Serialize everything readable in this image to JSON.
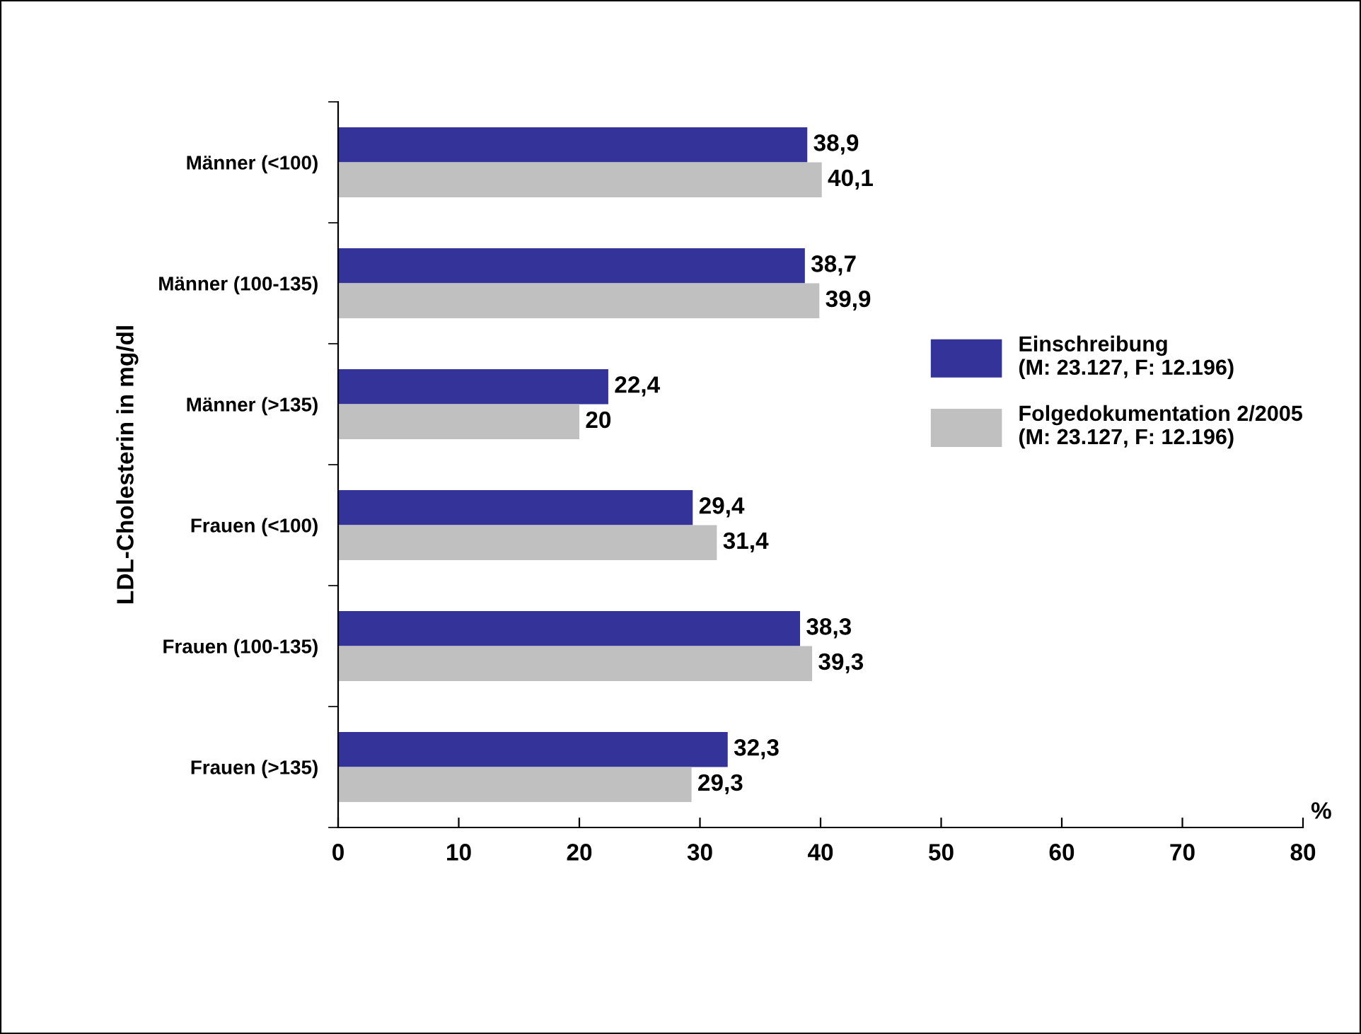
{
  "chart_data": {
    "type": "bar",
    "orientation": "horizontal",
    "categories": [
      "Männer (<100)",
      "Männer (100-135)",
      "Männer (>135)",
      "Frauen (<100)",
      "Frauen (100-135)",
      "Frauen (>135)"
    ],
    "ylabel": "LDL-Cholesterin in mg/dl",
    "xlabel": "%",
    "xlim": [
      0,
      80
    ],
    "xticks": [
      0,
      10,
      20,
      30,
      40,
      50,
      60,
      70,
      80
    ],
    "series": [
      {
        "name": "Einschreibung\n(M: 23.127, F: 12.196)",
        "color": "#333399",
        "values": [
          38.9,
          38.7,
          22.4,
          29.4,
          38.3,
          32.3
        ],
        "value_labels": [
          "38,9",
          "38,7",
          "22,4",
          "29,4",
          "38,3",
          "32,3"
        ]
      },
      {
        "name": "Folgedokumentation 2/2005\n(M: 23.127, F: 12.196)",
        "color": "#c0c0c0",
        "values": [
          40.1,
          39.9,
          20,
          31.4,
          39.3,
          29.3
        ],
        "value_labels": [
          "40,1",
          "39,9",
          "20",
          "31,4",
          "39,3",
          "29,3"
        ]
      }
    ],
    "grid": false,
    "legend": "right"
  }
}
